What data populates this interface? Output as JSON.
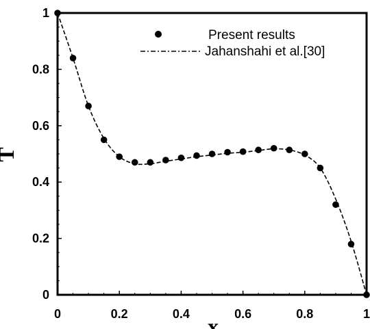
{
  "chart_data": {
    "type": "scatter",
    "title": "",
    "xlabel": "x",
    "ylabel": "T",
    "xlim": [
      0,
      1
    ],
    "ylim": [
      0,
      1
    ],
    "x_ticks": [
      "0",
      "0.2",
      "0.4",
      "0.6",
      "0.8",
      "1"
    ],
    "y_ticks": [
      "0",
      "0.2",
      "0.4",
      "0.6",
      "0.8",
      "1"
    ],
    "grid": false,
    "legend": "top-right",
    "series": [
      {
        "name": "Present results",
        "style": "markers",
        "color": "#000000",
        "x": [
          0.0,
          0.05,
          0.1,
          0.15,
          0.2,
          0.25,
          0.3,
          0.35,
          0.4,
          0.45,
          0.5,
          0.55,
          0.6,
          0.65,
          0.7,
          0.75,
          0.8,
          0.85,
          0.9,
          0.95,
          1.0
        ],
        "y": [
          1.0,
          0.84,
          0.67,
          0.55,
          0.49,
          0.47,
          0.47,
          0.478,
          0.486,
          0.494,
          0.5,
          0.506,
          0.508,
          0.514,
          0.52,
          0.514,
          0.5,
          0.45,
          0.32,
          0.18,
          0.0
        ]
      },
      {
        "name": "Jahanshahi et al.[30]",
        "style": "dash-dot-line",
        "color": "#000000",
        "x": [
          0.0,
          0.05,
          0.1,
          0.15,
          0.2,
          0.25,
          0.3,
          0.35,
          0.4,
          0.45,
          0.5,
          0.55,
          0.6,
          0.65,
          0.7,
          0.75,
          0.8,
          0.85,
          0.9,
          0.95,
          1.0
        ],
        "y": [
          1.0,
          0.84,
          0.67,
          0.555,
          0.49,
          0.465,
          0.465,
          0.474,
          0.482,
          0.49,
          0.496,
          0.502,
          0.506,
          0.512,
          0.518,
          0.514,
          0.496,
          0.45,
          0.34,
          0.19,
          0.0
        ]
      }
    ]
  }
}
